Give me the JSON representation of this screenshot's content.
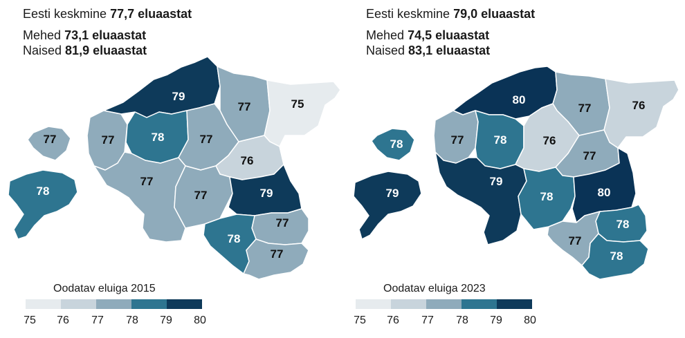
{
  "colors": {
    "75": "#e6ebee",
    "76": "#c8d4dc",
    "77": "#8fabbb",
    "78": "#2e7590",
    "79": "#0e3a5a",
    "80": "#0a3356",
    "border": "#ffffff",
    "dark_label": "#111111",
    "light_label": "#ffffff"
  },
  "maps": [
    {
      "year_label": "Oodatav eluiga 2015",
      "avg_prefix": "Eesti keskmine",
      "avg_value": "77,7 eluaastat",
      "men_prefix": "Mehed",
      "men_value": "73,1 eluaastat",
      "women_prefix": "Naised",
      "women_value": "81,9 eluaastat",
      "regions": [
        {
          "id": "harju",
          "value": "79",
          "level": 79
        },
        {
          "id": "laane-viru",
          "value": "77",
          "level": 77
        },
        {
          "id": "ida-viru",
          "value": "75",
          "level": 75
        },
        {
          "id": "hiiu",
          "value": "77",
          "level": 77
        },
        {
          "id": "laane",
          "value": "77",
          "level": 77
        },
        {
          "id": "rapla",
          "value": "78",
          "level": 78
        },
        {
          "id": "jarva",
          "value": "77",
          "level": 77
        },
        {
          "id": "jogeva",
          "value": "76",
          "level": 76
        },
        {
          "id": "saare",
          "value": "78",
          "level": 78
        },
        {
          "id": "parnu",
          "value": "77",
          "level": 77
        },
        {
          "id": "viljandi",
          "value": "77",
          "level": 77
        },
        {
          "id": "tartu",
          "value": "79",
          "level": 79
        },
        {
          "id": "polva",
          "value": "77",
          "level": 77
        },
        {
          "id": "valga",
          "value": "78",
          "level": 78
        },
        {
          "id": "voru",
          "value": "77",
          "level": 77
        }
      ]
    },
    {
      "year_label": "Oodatav eluiga 2023",
      "avg_prefix": "Eesti keskmine",
      "avg_value": "79,0 eluaastat",
      "men_prefix": "Mehed",
      "men_value": "74,5 eluaastat",
      "women_prefix": "Naised",
      "women_value": "83,1 eluaastat",
      "regions": [
        {
          "id": "harju",
          "value": "80",
          "level": 80
        },
        {
          "id": "laane-viru",
          "value": "77",
          "level": 77
        },
        {
          "id": "ida-viru",
          "value": "76",
          "level": 76
        },
        {
          "id": "hiiu",
          "value": "78",
          "level": 78
        },
        {
          "id": "laane",
          "value": "77",
          "level": 77
        },
        {
          "id": "rapla",
          "value": "78",
          "level": 78
        },
        {
          "id": "jarva",
          "value": "76",
          "level": 76
        },
        {
          "id": "jogeva",
          "value": "77",
          "level": 77
        },
        {
          "id": "saare",
          "value": "79",
          "level": 79
        },
        {
          "id": "parnu",
          "value": "79",
          "level": 79
        },
        {
          "id": "viljandi",
          "value": "78",
          "level": 78
        },
        {
          "id": "tartu",
          "value": "80",
          "level": 80
        },
        {
          "id": "polva",
          "value": "78",
          "level": 78
        },
        {
          "id": "valga",
          "value": "77",
          "level": 77
        },
        {
          "id": "voru",
          "value": "78",
          "level": 78
        }
      ]
    }
  ],
  "legend_ticks": [
    "75",
    "76",
    "77",
    "78",
    "79",
    "80"
  ]
}
